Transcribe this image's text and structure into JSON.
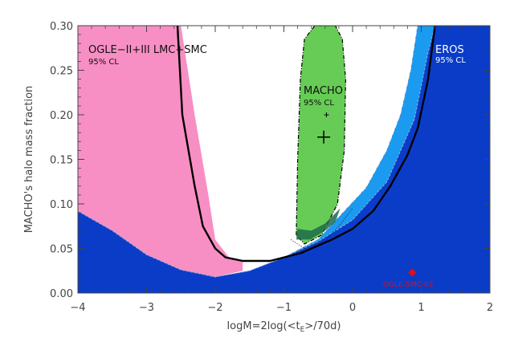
{
  "chart_data": {
    "type": "area",
    "title": "",
    "xlabel": "logM=2log(<t_E>/70d)",
    "ylabel": "MACHO's halo mass fraction",
    "xlim": [
      -4,
      2
    ],
    "ylim": [
      0.0,
      0.3
    ],
    "xticks": [
      -4,
      -3,
      -2,
      -1,
      0,
      1,
      2
    ],
    "xtick_labels": [
      "−4",
      "−3",
      "−2",
      "−1",
      "0",
      "1",
      "2"
    ],
    "yticks": [
      0.0,
      0.05,
      0.1,
      0.15,
      0.2,
      0.25,
      0.3
    ],
    "ytick_labels": [
      "0.00",
      "0.05",
      "0.10",
      "0.15",
      "0.20",
      "0.25",
      "0.30"
    ],
    "colors": {
      "ogle_excluded": "#0a3cc8",
      "eros_excluded": "#1a9bf0",
      "pink_region": "#f78fc4",
      "macho_region": "#66cc55",
      "overlap": "#1e6a4a",
      "ogle_star": "#e01010",
      "boundary": "#000000"
    },
    "regions": [
      {
        "id": "ogle",
        "points": [
          [
            -4.0,
            0.092
          ],
          [
            -3.5,
            0.07
          ],
          [
            -3.0,
            0.043
          ],
          [
            -2.5,
            0.026
          ],
          [
            -2.0,
            0.018
          ],
          [
            -1.5,
            0.025
          ],
          [
            -1.0,
            0.04
          ],
          [
            -0.5,
            0.058
          ],
          [
            0.0,
            0.082
          ],
          [
            0.5,
            0.125
          ],
          [
            0.9,
            0.195
          ],
          [
            1.1,
            0.27
          ],
          [
            1.2,
            0.3
          ]
        ]
      },
      {
        "id": "eros",
        "points": [
          [
            -1.0,
            0.04
          ],
          [
            -0.5,
            0.06
          ],
          [
            -0.2,
            0.085
          ],
          [
            0.2,
            0.118
          ],
          [
            0.5,
            0.16
          ],
          [
            0.7,
            0.2
          ],
          [
            0.85,
            0.25
          ],
          [
            0.95,
            0.3
          ]
        ]
      },
      {
        "id": "pink",
        "points": [
          [
            -2.5,
            0.3
          ],
          [
            -2.3,
            0.2
          ],
          [
            -2.1,
            0.11
          ],
          [
            -2.0,
            0.06
          ],
          [
            -1.8,
            0.04
          ],
          [
            -1.6,
            0.036
          ]
        ]
      },
      {
        "id": "macho",
        "points": [
          [
            -0.82,
            0.065
          ],
          [
            -0.8,
            0.15
          ],
          [
            -0.76,
            0.24
          ],
          [
            -0.7,
            0.285
          ],
          [
            -0.55,
            0.3
          ],
          [
            -0.25,
            0.3
          ],
          [
            -0.15,
            0.285
          ],
          [
            -0.1,
            0.24
          ],
          [
            -0.12,
            0.16
          ],
          [
            -0.22,
            0.1
          ],
          [
            -0.45,
            0.065
          ],
          [
            -0.7,
            0.055
          ],
          [
            -0.82,
            0.065
          ]
        ]
      },
      {
        "id": "ogle_boundary",
        "points": [
          [
            -2.55,
            0.3
          ],
          [
            -2.48,
            0.2
          ],
          [
            -2.3,
            0.12
          ],
          [
            -2.18,
            0.075
          ],
          [
            -2.0,
            0.05
          ],
          [
            -1.85,
            0.04
          ],
          [
            -1.6,
            0.036
          ],
          [
            -1.2,
            0.036
          ],
          [
            -0.75,
            0.045
          ],
          [
            -0.3,
            0.06
          ],
          [
            0.0,
            0.072
          ],
          [
            0.3,
            0.092
          ],
          [
            0.55,
            0.12
          ],
          [
            0.8,
            0.155
          ],
          [
            0.95,
            0.185
          ],
          [
            1.1,
            0.24
          ],
          [
            1.2,
            0.3
          ]
        ]
      }
    ],
    "points": [
      {
        "label": "+",
        "x": -0.42,
        "y": 0.175
      },
      {
        "label": "",
        "x": -0.38,
        "y": 0.2
      },
      {
        "label": "OGLE-SMC-02",
        "x": 0.87,
        "y": 0.023
      }
    ],
    "annotations": [
      {
        "id": "ogle_title",
        "text": "OGLE−II+III LMC+SMC"
      },
      {
        "id": "ogle_cl",
        "text": "95% CL"
      },
      {
        "id": "macho_title",
        "text": "MACHO"
      },
      {
        "id": "macho_cl",
        "text": "95% CL"
      },
      {
        "id": "eros_title",
        "text": "EROS"
      },
      {
        "id": "eros_cl",
        "text": "95% CL"
      },
      {
        "id": "ogle_smc",
        "text": "OGLE-SMC-02"
      }
    ],
    "grid": false,
    "legend": "none"
  }
}
